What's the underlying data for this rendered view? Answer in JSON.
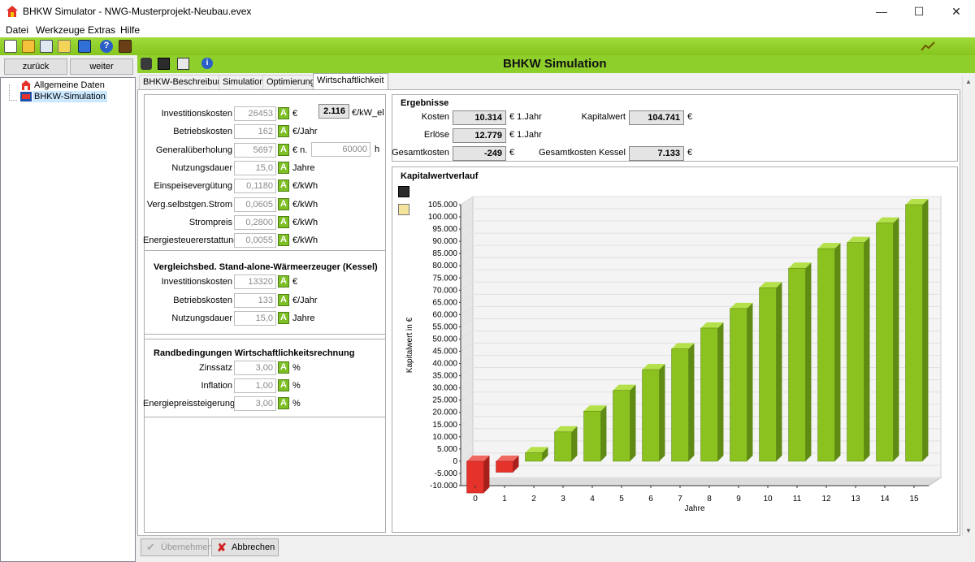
{
  "window": {
    "title": "BHKW Simulator - NWG-Musterprojekt-Neubau.evex",
    "minimize": "—",
    "maximize": "☐",
    "close": "✕"
  },
  "menu": [
    "Datei",
    "Werkzeuge",
    "Extras",
    "Hilfe"
  ],
  "nav": {
    "back": "zurück",
    "forward": "weiter"
  },
  "tree": [
    {
      "label": "Allgemeine Daten",
      "icon": "house-icon"
    },
    {
      "label": "BHKW-Simulation",
      "icon": "chp-unit-icon",
      "selected": true
    }
  ],
  "banner": {
    "title": "BHKW Simulation"
  },
  "tabs": [
    {
      "label": "BHKW-Beschreibung"
    },
    {
      "label": "Simulation"
    },
    {
      "label": "Optimierung"
    },
    {
      "label": "Wirtschaftlichkeit",
      "active": true
    }
  ],
  "inputs": [
    {
      "label": "Investitionskosten",
      "value": "26453",
      "unit": "€"
    },
    {
      "label": "Betriebskosten",
      "value": "162",
      "unit": "€/Jahr"
    },
    {
      "label": "Generalüberholung",
      "value": "5697",
      "unit": "€ n."
    },
    {
      "label": "Nutzungsdauer",
      "value": "15,0",
      "unit": "Jahre"
    },
    {
      "label": "Einspeisevergütung",
      "value": "0,1180",
      "unit": "€/kWh"
    },
    {
      "label": "Verg.selbstgen.Strom",
      "value": "0,0605",
      "unit": "€/kWh"
    },
    {
      "label": "Strompreis",
      "value": "0,2800",
      "unit": "€/kWh"
    },
    {
      "label": "Energiesteuererstattung",
      "value": "0,0055",
      "unit": "€/kWh"
    }
  ],
  "specific_cost": {
    "value": "2.116",
    "unit": "€/kW_el"
  },
  "overhaul_interval": {
    "value": "60000",
    "unit": "h"
  },
  "boiler": {
    "title": "Vergleichsbed. Stand-alone-Wärmeerzeuger (Kessel)",
    "rows": [
      {
        "label": "Investitionskosten",
        "value": "13320",
        "unit": "€"
      },
      {
        "label": "Betriebskosten",
        "value": "133",
        "unit": "€/Jahr"
      },
      {
        "label": "Nutzungsdauer",
        "value": "15,0",
        "unit": "Jahre"
      }
    ]
  },
  "boundary": {
    "title": "Randbedingungen Wirtschaftlichkeitsrechnung",
    "rows": [
      {
        "label": "Zinssatz",
        "value": "3,00",
        "unit": "%"
      },
      {
        "label": "Inflation",
        "value": "1,00",
        "unit": "%"
      },
      {
        "label": "Energiepreissteigerung",
        "value": "3,00",
        "unit": "%"
      }
    ]
  },
  "results": {
    "title": "Ergebnisse",
    "kosten": {
      "label": "Kosten",
      "value": "10.314",
      "unit": "€ 1.Jahr"
    },
    "erloese": {
      "label": "Erlöse",
      "value": "12.779",
      "unit": "€ 1.Jahr"
    },
    "gesamt": {
      "label": "Gesamtkosten",
      "value": "-249",
      "unit": "€"
    },
    "kapitalwert": {
      "label": "Kapitalwert",
      "value": "104.741",
      "unit": "€"
    },
    "kessel": {
      "label": "Gesamtkosten Kessel",
      "value": "7.133",
      "unit": "€"
    }
  },
  "buttons": {
    "apply": "Übernehmen",
    "cancel": "Abbrechen"
  },
  "chart_title": "Kapitalwertverlauf",
  "chart_data": {
    "type": "bar",
    "title": "Kapitalwertverlauf",
    "xlabel": "Jahre",
    "ylabel": "Kapitalwert in €",
    "categories": [
      "0",
      "1",
      "2",
      "3",
      "4",
      "5",
      "6",
      "7",
      "8",
      "9",
      "10",
      "11",
      "12",
      "13",
      "14",
      "15"
    ],
    "values": [
      -13000,
      -4500,
      3500,
      12000,
      20500,
      29000,
      37500,
      46000,
      54500,
      62500,
      71000,
      79000,
      87000,
      89500,
      97500,
      105000
    ],
    "ylim": [
      -10000,
      105000
    ],
    "yticks": [
      -10000,
      -5000,
      0,
      5000,
      10000,
      15000,
      20000,
      25000,
      30000,
      35000,
      40000,
      45000,
      50000,
      55000,
      60000,
      65000,
      70000,
      75000,
      80000,
      85000,
      90000,
      95000,
      100000,
      105000
    ],
    "ytick_labels": [
      "-10.000",
      "-5.000",
      "0",
      "5.000",
      "10.000",
      "15.000",
      "20.000",
      "25.000",
      "30.000",
      "35.000",
      "40.000",
      "45.000",
      "50.000",
      "55.000",
      "60.000",
      "65.000",
      "70.000",
      "75.000",
      "80.000",
      "85.000",
      "90.000",
      "95.000",
      "100.000",
      "105.000"
    ],
    "colors": {
      "positive": "#8cc21f",
      "negative": "#e5322a"
    },
    "grid": true
  }
}
